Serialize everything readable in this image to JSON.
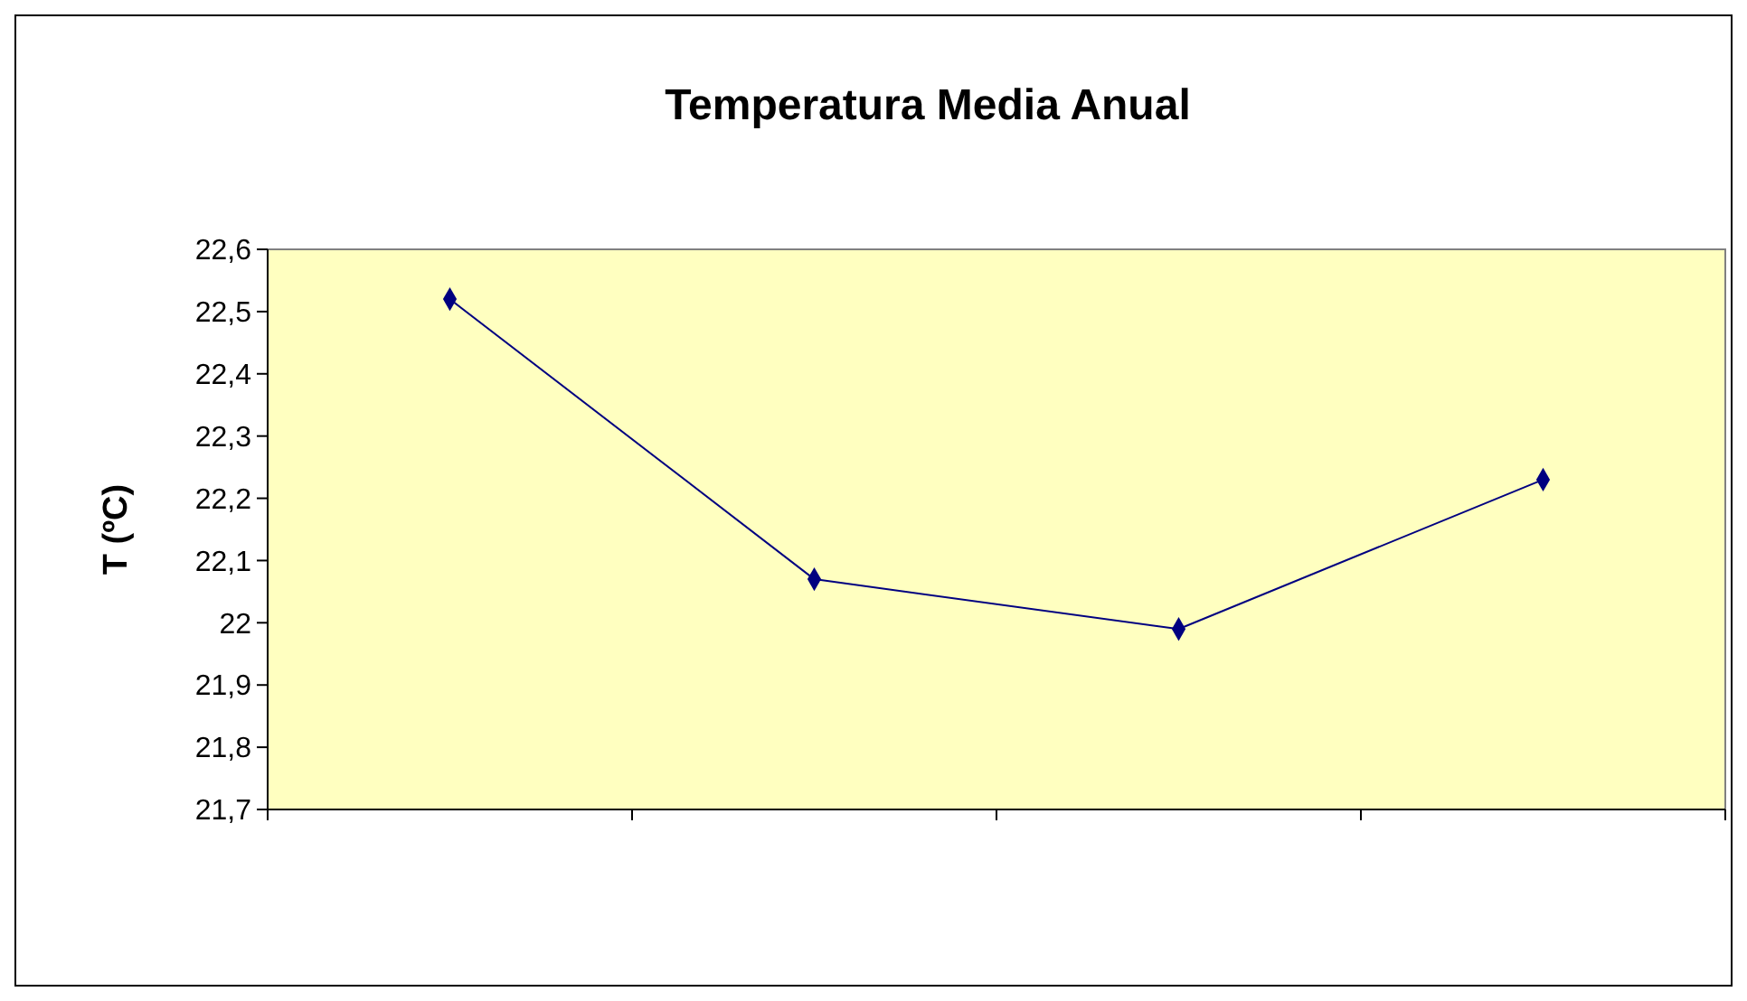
{
  "chart_data": {
    "type": "line",
    "title": "Temperatura Media Anual",
    "ylabel": "T (ºC)",
    "categories": [
      null,
      null,
      null,
      null
    ],
    "series": [
      {
        "color": "#000080",
        "values": [
          22.52,
          22.07,
          21.99,
          22.23
        ]
      }
    ],
    "ylim": [
      21.7,
      22.6
    ],
    "yticks": [
      {
        "value": 21.7,
        "label": "21,7"
      },
      {
        "value": 21.8,
        "label": "21,8"
      },
      {
        "value": 21.9,
        "label": "21,9"
      },
      {
        "value": 22,
        "label": "22"
      },
      {
        "value": 22.1,
        "label": "22,1"
      },
      {
        "value": 22.2,
        "label": "22,2"
      },
      {
        "value": 22.3,
        "label": "22,3"
      },
      {
        "value": 22.4,
        "label": "22,4"
      },
      {
        "value": 22.5,
        "label": "22,5"
      },
      {
        "value": 22.6,
        "label": "22,6"
      }
    ],
    "marker": "diamond"
  }
}
